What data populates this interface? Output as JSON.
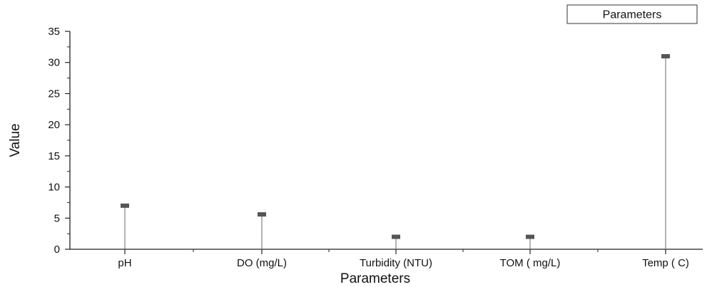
{
  "chart_data": {
    "type": "scatter",
    "style": "drop-line",
    "title": "",
    "xlabel": "Parameters",
    "ylabel": "Value",
    "ylim": [
      0,
      35
    ],
    "y_ticks": [
      "0",
      "5",
      "10",
      "15",
      "20",
      "25",
      "30",
      "35"
    ],
    "categories": [
      "pH",
      "DO (mg/L)",
      "Turbidity (NTU)",
      "TOM ( mg/L)",
      "Temp ( C)"
    ],
    "series": [
      {
        "name": "Parameters",
        "values": [
          7.0,
          5.6,
          2.0,
          2.0,
          31.0
        ]
      }
    ],
    "legend_position": "top-right",
    "grid": false,
    "colors": {
      "marker": "#555555",
      "line": "#777777",
      "axis": "#222222"
    }
  }
}
